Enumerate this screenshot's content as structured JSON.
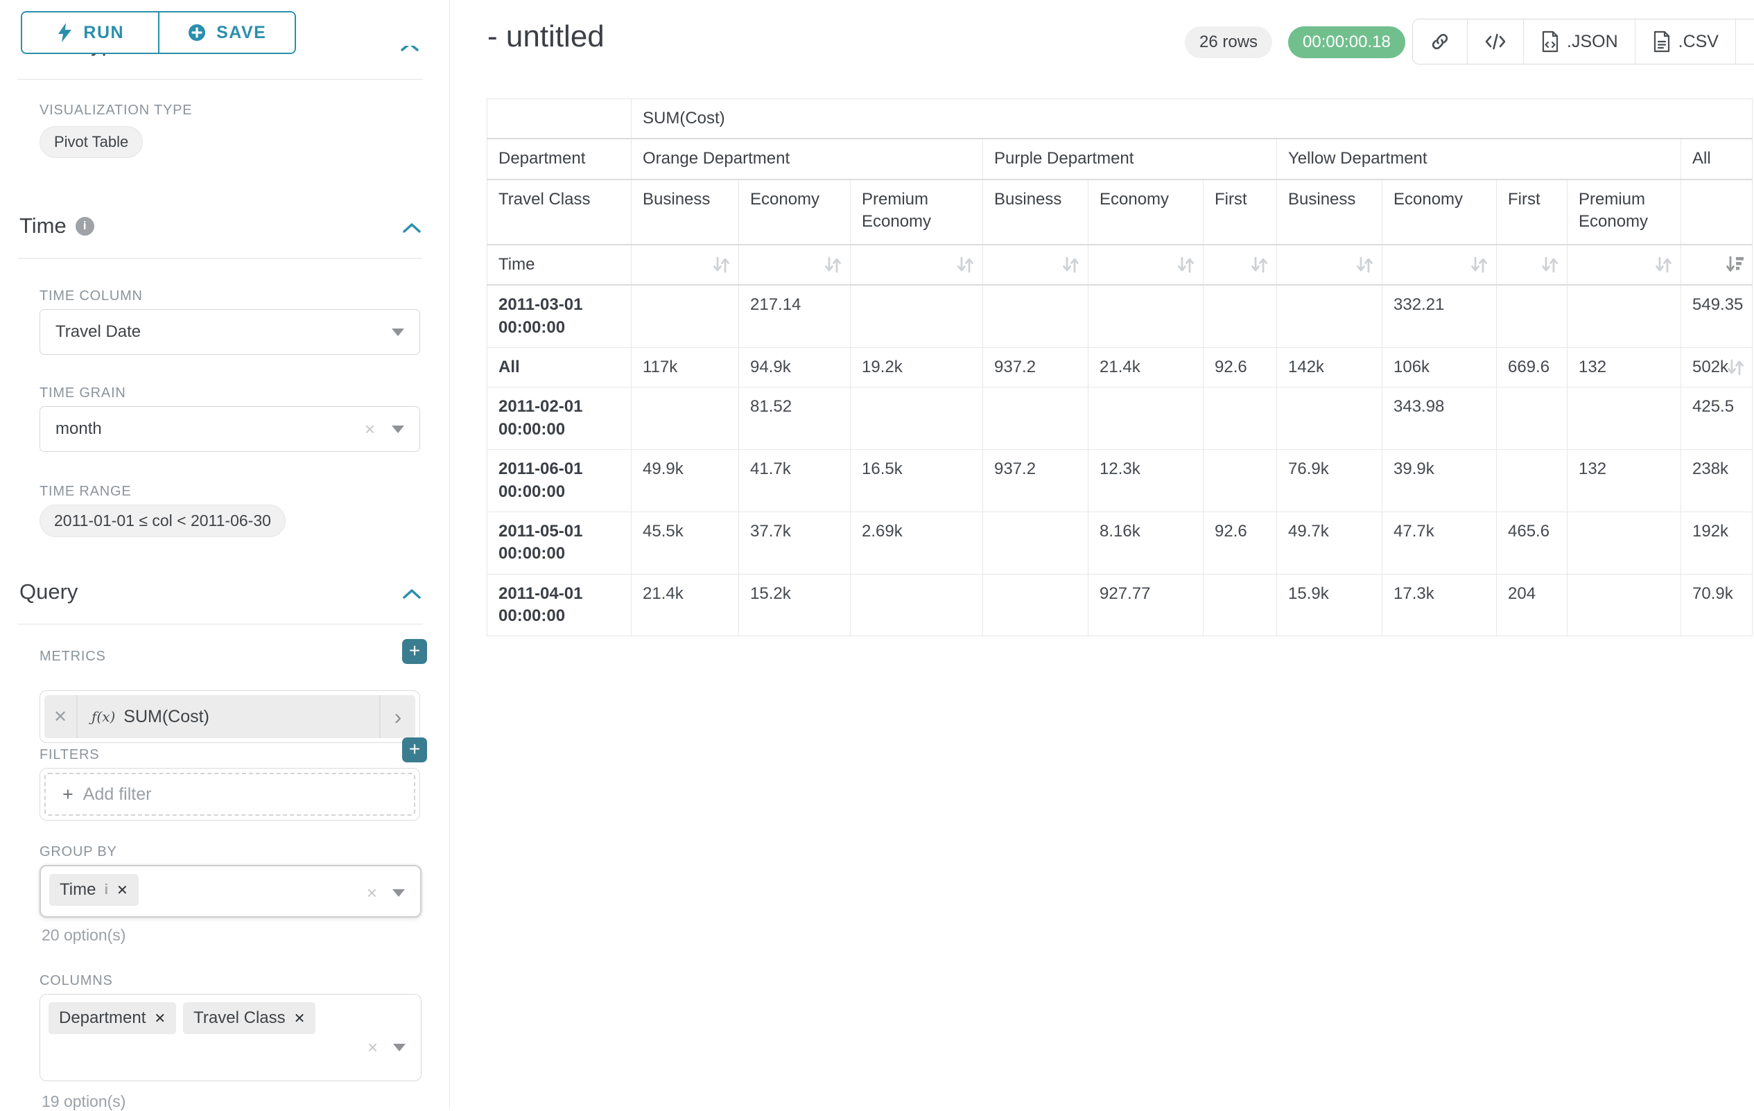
{
  "sidebar": {
    "run_label": "RUN",
    "save_label": "SAVE",
    "chart_type_heading": "Chart Type",
    "visualization_type_label": "VISUALIZATION TYPE",
    "visualization_type_value": "Pivot Table",
    "time_section": {
      "title": "Time",
      "time_column_label": "TIME COLUMN",
      "time_column_value": "Travel Date",
      "time_grain_label": "TIME GRAIN",
      "time_grain_value": "month",
      "time_range_label": "TIME RANGE",
      "time_range_value": "2011-01-01 ≤ col < 2011-06-30"
    },
    "query_section": {
      "title": "Query",
      "metrics_label": "METRICS",
      "metric_prefix": "ƒ(x)",
      "metric_value": "SUM(Cost)",
      "filters_label": "FILTERS",
      "add_filter_label": "Add filter",
      "group_by_label": "GROUP BY",
      "group_by_tags": [
        {
          "label": "Time",
          "info": true
        }
      ],
      "group_by_options": "20 option(s)",
      "columns_label": "COLUMNS",
      "columns_tags": [
        {
          "label": "Department"
        },
        {
          "label": "Travel Class"
        }
      ],
      "columns_options": "19 option(s)"
    }
  },
  "header": {
    "title": "- untitled",
    "row_count": "26 rows",
    "query_time": "00:00:00.18",
    "json_label": ".JSON",
    "csv_label": ".CSV"
  },
  "icons": {
    "run": "lightning-bolt",
    "save": "circle-plus",
    "link": "chain-link",
    "embed": "code-brackets",
    "json_file": "code-file",
    "csv_file": "text-file",
    "menu": "hamburger",
    "info": "info-circle",
    "collapse": "chevron-up",
    "dropdown": "caret-down",
    "clear": "x",
    "sort_inactive": "sort-arrows",
    "sort_active": "sort-descending"
  },
  "pivot_table": {
    "metric_header": "SUM(Cost)",
    "col_dim_label": "Department",
    "col_dim2_label": "Travel Class",
    "row_dim_label": "Time",
    "col_groups": [
      {
        "name": "Orange Department",
        "classes": [
          "Business",
          "Economy",
          "Premium Economy"
        ]
      },
      {
        "name": "Purple Department",
        "classes": [
          "Business",
          "Economy",
          "First"
        ]
      },
      {
        "name": "Yellow Department",
        "classes": [
          "Business",
          "Economy",
          "First",
          "Premium Economy"
        ]
      },
      {
        "name": "All",
        "classes": [
          ""
        ]
      }
    ],
    "rows": [
      {
        "label": "2011-03-01 00:00:00",
        "values": [
          "",
          "217.14",
          "",
          "",
          "",
          "",
          "",
          "332.21",
          "",
          "",
          "549.35"
        ]
      },
      {
        "label": "All",
        "values": [
          "117k",
          "94.9k",
          "19.2k",
          "937.2",
          "21.4k",
          "92.6",
          "142k",
          "106k",
          "669.6",
          "132",
          "502k"
        ]
      },
      {
        "label": "2011-02-01 00:00:00",
        "values": [
          "",
          "81.52",
          "",
          "",
          "",
          "",
          "",
          "343.98",
          "",
          "",
          "425.5"
        ]
      },
      {
        "label": "2011-06-01 00:00:00",
        "values": [
          "49.9k",
          "41.7k",
          "16.5k",
          "937.2",
          "12.3k",
          "",
          "76.9k",
          "39.9k",
          "",
          "132",
          "238k"
        ]
      },
      {
        "label": "2011-05-01 00:00:00",
        "values": [
          "45.5k",
          "37.7k",
          "2.69k",
          "",
          "8.16k",
          "92.6",
          "49.7k",
          "47.7k",
          "465.6",
          "",
          "192k"
        ]
      },
      {
        "label": "2011-04-01 00:00:00",
        "values": [
          "21.4k",
          "15.2k",
          "",
          "",
          "927.77",
          "",
          "15.9k",
          "17.3k",
          "204",
          "",
          "70.9k"
        ]
      }
    ]
  }
}
